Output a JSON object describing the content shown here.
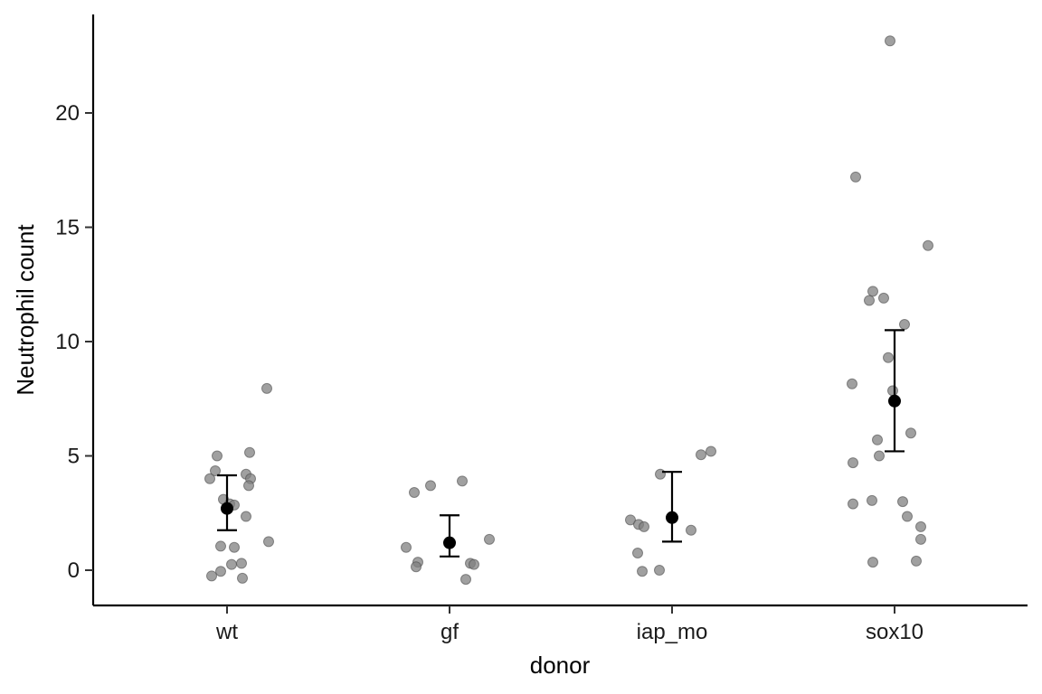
{
  "chart_data": {
    "type": "scatter",
    "xlabel": "donor",
    "ylabel": "Neutrophil count",
    "categories": [
      "wt",
      "gf",
      "iap_mo",
      "sox10"
    ],
    "ylim": [
      -1.5,
      24.2
    ],
    "yticks": [
      0,
      5,
      10,
      15,
      20
    ],
    "grid": false,
    "legend": "none",
    "point_color": "#808080",
    "summary_color": "#000000",
    "points": [
      {
        "category": "wt",
        "x_jitter": -0.19,
        "y": 4.0
      },
      {
        "category": "wt",
        "x_jitter": -0.13,
        "y": 4.35
      },
      {
        "category": "wt",
        "x_jitter": -0.11,
        "y": 5.0
      },
      {
        "category": "wt",
        "x_jitter": -0.04,
        "y": 3.1
      },
      {
        "category": "wt",
        "x_jitter": 0.03,
        "y": 2.9
      },
      {
        "category": "wt",
        "x_jitter": 0.08,
        "y": 2.85
      },
      {
        "category": "wt",
        "x_jitter": 0.08,
        "y": 1.0
      },
      {
        "category": "wt",
        "x_jitter": -0.07,
        "y": 1.05
      },
      {
        "category": "wt",
        "x_jitter": 0.21,
        "y": 4.2
      },
      {
        "category": "wt",
        "x_jitter": 0.25,
        "y": 5.15
      },
      {
        "category": "wt",
        "x_jitter": 0.26,
        "y": 4.0
      },
      {
        "category": "wt",
        "x_jitter": 0.24,
        "y": 3.7
      },
      {
        "category": "wt",
        "x_jitter": 0.21,
        "y": 2.35
      },
      {
        "category": "wt",
        "x_jitter": 0.44,
        "y": 7.95
      },
      {
        "category": "wt",
        "x_jitter": 0.46,
        "y": 1.25
      },
      {
        "category": "wt",
        "x_jitter": 0.05,
        "y": 0.25
      },
      {
        "category": "wt",
        "x_jitter": 0.16,
        "y": 0.3
      },
      {
        "category": "wt",
        "x_jitter": -0.17,
        "y": -0.25
      },
      {
        "category": "wt",
        "x_jitter": -0.07,
        "y": -0.05
      },
      {
        "category": "wt",
        "x_jitter": 0.17,
        "y": -0.35
      },
      {
        "category": "gf",
        "x_jitter": -0.39,
        "y": 3.4
      },
      {
        "category": "gf",
        "x_jitter": -0.21,
        "y": 3.7
      },
      {
        "category": "gf",
        "x_jitter": 0.14,
        "y": 3.9
      },
      {
        "category": "gf",
        "x_jitter": -0.48,
        "y": 1.0
      },
      {
        "category": "gf",
        "x_jitter": -0.35,
        "y": 0.35
      },
      {
        "category": "gf",
        "x_jitter": -0.37,
        "y": 0.15
      },
      {
        "category": "gf",
        "x_jitter": 0.23,
        "y": 0.3
      },
      {
        "category": "gf",
        "x_jitter": 0.27,
        "y": 0.25
      },
      {
        "category": "gf",
        "x_jitter": 0.44,
        "y": 1.35
      },
      {
        "category": "gf",
        "x_jitter": 0.18,
        "y": -0.4
      },
      {
        "category": "iap_mo",
        "x_jitter": -0.46,
        "y": 2.2
      },
      {
        "category": "iap_mo",
        "x_jitter": -0.37,
        "y": 2.0
      },
      {
        "category": "iap_mo",
        "x_jitter": -0.31,
        "y": 1.9
      },
      {
        "category": "iap_mo",
        "x_jitter": -0.38,
        "y": 0.75
      },
      {
        "category": "iap_mo",
        "x_jitter": -0.33,
        "y": -0.05
      },
      {
        "category": "iap_mo",
        "x_jitter": -0.14,
        "y": 0.0
      },
      {
        "category": "iap_mo",
        "x_jitter": -0.13,
        "y": 4.2
      },
      {
        "category": "iap_mo",
        "x_jitter": 0.21,
        "y": 1.75
      },
      {
        "category": "iap_mo",
        "x_jitter": 0.32,
        "y": 5.05
      },
      {
        "category": "iap_mo",
        "x_jitter": 0.43,
        "y": 5.2
      },
      {
        "category": "sox10",
        "x_jitter": -0.05,
        "y": 23.15
      },
      {
        "category": "sox10",
        "x_jitter": -0.43,
        "y": 17.2
      },
      {
        "category": "sox10",
        "x_jitter": 0.37,
        "y": 14.2
      },
      {
        "category": "sox10",
        "x_jitter": -0.24,
        "y": 12.2
      },
      {
        "category": "sox10",
        "x_jitter": -0.28,
        "y": 11.8
      },
      {
        "category": "sox10",
        "x_jitter": -0.12,
        "y": 11.9
      },
      {
        "category": "sox10",
        "x_jitter": 0.11,
        "y": 10.75
      },
      {
        "category": "sox10",
        "x_jitter": -0.07,
        "y": 9.3
      },
      {
        "category": "sox10",
        "x_jitter": -0.47,
        "y": 8.15
      },
      {
        "category": "sox10",
        "x_jitter": -0.02,
        "y": 7.85
      },
      {
        "category": "sox10",
        "x_jitter": 0.18,
        "y": 6.0
      },
      {
        "category": "sox10",
        "x_jitter": -0.19,
        "y": 5.7
      },
      {
        "category": "sox10",
        "x_jitter": -0.17,
        "y": 5.0
      },
      {
        "category": "sox10",
        "x_jitter": -0.46,
        "y": 4.7
      },
      {
        "category": "sox10",
        "x_jitter": -0.46,
        "y": 2.9
      },
      {
        "category": "sox10",
        "x_jitter": -0.25,
        "y": 3.05
      },
      {
        "category": "sox10",
        "x_jitter": 0.09,
        "y": 3.0
      },
      {
        "category": "sox10",
        "x_jitter": 0.14,
        "y": 2.35
      },
      {
        "category": "sox10",
        "x_jitter": 0.29,
        "y": 1.9
      },
      {
        "category": "sox10",
        "x_jitter": 0.29,
        "y": 1.35
      },
      {
        "category": "sox10",
        "x_jitter": -0.24,
        "y": 0.35
      },
      {
        "category": "sox10",
        "x_jitter": 0.24,
        "y": 0.4
      }
    ],
    "summary": [
      {
        "category": "wt",
        "mean": 2.7,
        "lower": 1.75,
        "upper": 4.15
      },
      {
        "category": "gf",
        "mean": 1.2,
        "lower": 0.6,
        "upper": 2.4
      },
      {
        "category": "iap_mo",
        "mean": 2.3,
        "lower": 1.25,
        "upper": 4.3
      },
      {
        "category": "sox10",
        "mean": 7.4,
        "lower": 5.2,
        "upper": 10.5
      }
    ]
  }
}
